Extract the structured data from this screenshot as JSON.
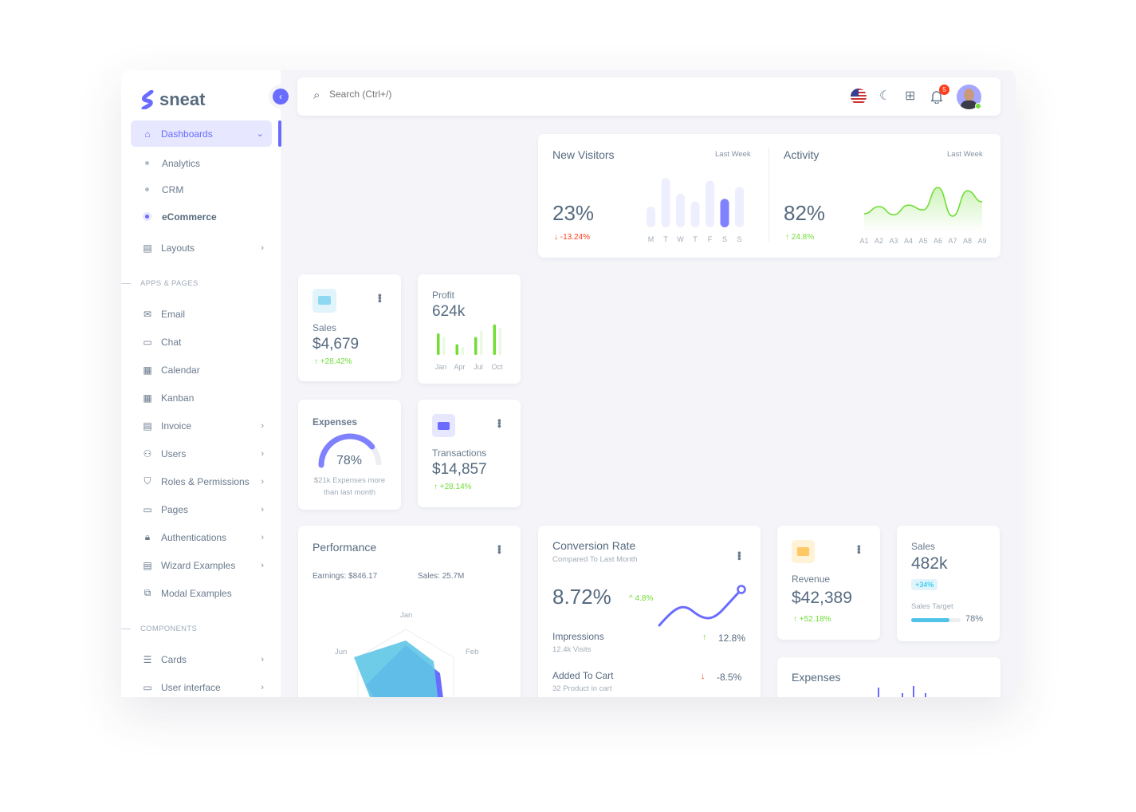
{
  "brand": {
    "name": "sneat",
    "accent": "#696cff"
  },
  "sidebar": {
    "dashboards": "Dashboards",
    "sub": [
      "Analytics",
      "CRM",
      "eCommerce"
    ],
    "layouts": "Layouts",
    "apps_header": "APPS & PAGES",
    "apps": [
      "Email",
      "Chat",
      "Calendar",
      "Kanban",
      "Invoice",
      "Users",
      "Roles & Permissions",
      "Pages",
      "Authentications",
      "Wizard Examples",
      "Modal Examples"
    ],
    "components_header": "COMPONENTS",
    "components": [
      "Cards",
      "User interface"
    ]
  },
  "navbar": {
    "search_placeholder": "Search (Ctrl+/)",
    "notifications": "5"
  },
  "new_visitors": {
    "title": "New Visitors",
    "period": "Last Week",
    "value": "23%",
    "change": "-13.24%",
    "days": [
      "M",
      "T",
      "W",
      "T",
      "F",
      "S",
      "S"
    ],
    "bars": [
      40,
      95,
      65,
      50,
      90,
      55,
      78
    ],
    "highlight": 5
  },
  "activity": {
    "title": "Activity",
    "period": "Last Week",
    "value": "82%",
    "change": "24.8%",
    "labels": [
      "A1",
      "A2",
      "A3",
      "A4",
      "A5",
      "A6",
      "A7",
      "A8",
      "A9"
    ],
    "values": [
      30,
      45,
      28,
      48,
      38,
      85,
      25,
      78,
      55
    ]
  },
  "sales_small": {
    "label": "Sales",
    "value": "$4,679",
    "change": "+28.42%"
  },
  "profit": {
    "label": "Profit",
    "value": "624k",
    "months": [
      "Jan",
      "Apr",
      "Jul",
      "Oct"
    ],
    "bars": [
      [
        60,
        50
      ],
      [
        30,
        22
      ],
      [
        50,
        68
      ],
      [
        85,
        75
      ]
    ]
  },
  "expenses": {
    "label": "Expenses",
    "value": "78%",
    "percent": 78,
    "note1": "$21k Expenses more",
    "note2": "than last month"
  },
  "transactions": {
    "label": "Transactions",
    "value": "$14,857",
    "change": "+28.14%"
  },
  "performance": {
    "title": "Performance",
    "earnings": "Earnings: $846.17",
    "sales": "Sales: 25.7M",
    "axes": [
      "Jan",
      "Feb",
      "Jun"
    ]
  },
  "conversion": {
    "title": "Conversion Rate",
    "subtitle": "Compared To Last Month",
    "value": "8.72%",
    "change": "4.8%",
    "impressions": {
      "label": "Impressions",
      "sub": "12.4k Visits",
      "value": "12.8%"
    },
    "cart": {
      "label": "Added To Cart",
      "sub": "32 Product in cart",
      "value": "-8.5%"
    }
  },
  "revenue": {
    "label": "Revenue",
    "value": "$42,389",
    "change": "+52.18%"
  },
  "sales_big": {
    "label": "Sales",
    "value": "482k",
    "badge": "+34%",
    "target_label": "Sales Target",
    "target": "78%",
    "target_percent": 78
  },
  "expenses_bottom": {
    "title": "Expenses"
  }
}
